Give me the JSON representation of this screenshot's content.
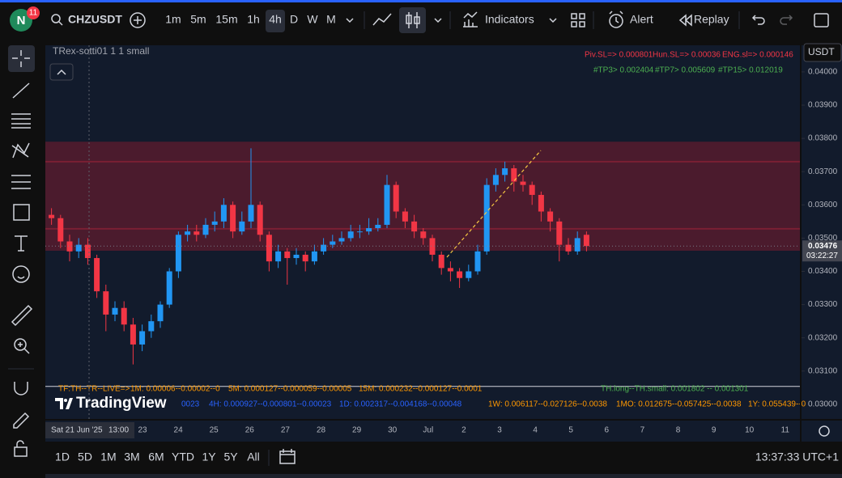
{
  "toolbar": {
    "avatar": "N",
    "badge": "11",
    "symbol": "CHZUSDT",
    "intervals": [
      "1m",
      "5m",
      "15m",
      "1h",
      "4h",
      "D",
      "W",
      "M"
    ],
    "indicators": "Indicators",
    "alert": "Alert",
    "replay": "Replay"
  },
  "chart_data": {
    "type": "candlestick",
    "title": "TRex-sotti01 1 1 small",
    "colors": {
      "up": "#2196f3",
      "down": "#f23645"
    },
    "candles": [
      [
        0.0357,
        0.0359,
        0.0354,
        0.0356
      ],
      [
        0.0356,
        0.0357,
        0.0347,
        0.0349
      ],
      [
        0.0349,
        0.0351,
        0.0343,
        0.0346
      ],
      [
        0.0346,
        0.035,
        0.0344,
        0.0348
      ],
      [
        0.0348,
        0.035,
        0.0342,
        0.0344
      ],
      [
        0.0344,
        0.0345,
        0.0332,
        0.0334
      ],
      [
        0.0334,
        0.0336,
        0.0322,
        0.0327
      ],
      [
        0.0327,
        0.0331,
        0.0325,
        0.0329
      ],
      [
        0.0329,
        0.0331,
        0.0322,
        0.0324
      ],
      [
        0.0324,
        0.0326,
        0.0312,
        0.0318
      ],
      [
        0.0318,
        0.0324,
        0.0316,
        0.0322
      ],
      [
        0.0322,
        0.0327,
        0.032,
        0.0325
      ],
      [
        0.0325,
        0.0331,
        0.0323,
        0.033
      ],
      [
        0.033,
        0.0341,
        0.0329,
        0.034
      ],
      [
        0.034,
        0.0352,
        0.0338,
        0.0351
      ],
      [
        0.0351,
        0.0354,
        0.0349,
        0.0352
      ],
      [
        0.0352,
        0.0354,
        0.0349,
        0.0351
      ],
      [
        0.0351,
        0.0356,
        0.035,
        0.0354
      ],
      [
        0.0354,
        0.0358,
        0.0352,
        0.0355
      ],
      [
        0.0355,
        0.0362,
        0.0353,
        0.036
      ],
      [
        0.036,
        0.0361,
        0.035,
        0.0352
      ],
      [
        0.0352,
        0.0358,
        0.0351,
        0.0355
      ],
      [
        0.0355,
        0.0377,
        0.0353,
        0.036
      ],
      [
        0.036,
        0.0361,
        0.0349,
        0.0351
      ],
      [
        0.0351,
        0.0352,
        0.034,
        0.0343
      ],
      [
        0.0343,
        0.0348,
        0.0341,
        0.0346
      ],
      [
        0.0346,
        0.0347,
        0.0336,
        0.0344
      ],
      [
        0.0344,
        0.0347,
        0.0342,
        0.0345
      ],
      [
        0.0345,
        0.0346,
        0.034,
        0.0343
      ],
      [
        0.0343,
        0.0348,
        0.0342,
        0.0346
      ],
      [
        0.0346,
        0.035,
        0.0345,
        0.0348
      ],
      [
        0.0348,
        0.0351,
        0.0347,
        0.0349
      ],
      [
        0.0349,
        0.0352,
        0.0348,
        0.035
      ],
      [
        0.035,
        0.0354,
        0.0349,
        0.0352
      ],
      [
        0.0352,
        0.0354,
        0.035,
        0.0352
      ],
      [
        0.0352,
        0.0356,
        0.0351,
        0.0353
      ],
      [
        0.0353,
        0.0356,
        0.0352,
        0.0354
      ],
      [
        0.0354,
        0.0369,
        0.0353,
        0.0366
      ],
      [
        0.0366,
        0.0367,
        0.0356,
        0.0358
      ],
      [
        0.0358,
        0.0359,
        0.0353,
        0.0355
      ],
      [
        0.0355,
        0.0357,
        0.035,
        0.0352
      ],
      [
        0.0352,
        0.0353,
        0.0348,
        0.035
      ],
      [
        0.035,
        0.0351,
        0.0343,
        0.0345
      ],
      [
        0.0345,
        0.0346,
        0.0339,
        0.0341
      ],
      [
        0.0341,
        0.0343,
        0.0337,
        0.034
      ],
      [
        0.034,
        0.0341,
        0.0335,
        0.0338
      ],
      [
        0.0338,
        0.0342,
        0.0337,
        0.034
      ],
      [
        0.034,
        0.0348,
        0.0339,
        0.0346
      ],
      [
        0.0346,
        0.0368,
        0.0345,
        0.0366
      ],
      [
        0.0366,
        0.0371,
        0.0364,
        0.0369
      ],
      [
        0.0369,
        0.0373,
        0.0367,
        0.0371
      ],
      [
        0.0371,
        0.0372,
        0.0364,
        0.0367
      ],
      [
        0.0367,
        0.0369,
        0.0364,
        0.0366
      ],
      [
        0.0366,
        0.0367,
        0.036,
        0.0363
      ],
      [
        0.0363,
        0.0364,
        0.0355,
        0.0358
      ],
      [
        0.0358,
        0.0359,
        0.0352,
        0.0355
      ],
      [
        0.0355,
        0.0356,
        0.0343,
        0.0348
      ],
      [
        0.0348,
        0.035,
        0.0345,
        0.0346
      ],
      [
        0.0346,
        0.0352,
        0.0345,
        0.035
      ],
      [
        0.0351,
        0.0352,
        0.0346,
        0.03476
      ]
    ],
    "ylim": [
      0.02956,
      0.0408
    ],
    "yticks": [
      {
        "value": 0.03,
        "label": "0.03000"
      },
      {
        "value": 0.031,
        "label": "0.03100"
      },
      {
        "value": 0.032,
        "label": "0.03200"
      },
      {
        "value": 0.033,
        "label": "0.03300"
      },
      {
        "value": 0.034,
        "label": "0.03400"
      },
      {
        "value": 0.035,
        "label": "0.03500"
      },
      {
        "value": 0.036,
        "label": "0.03600"
      },
      {
        "value": 0.037,
        "label": "0.03700"
      },
      {
        "value": 0.038,
        "label": "0.03800"
      },
      {
        "value": 0.039,
        "label": "0.03900"
      },
      {
        "value": 0.04,
        "label": "0.04000"
      }
    ],
    "grid": false,
    "zone": [
      0.0379,
      0.03462
    ],
    "zone_lines": [
      0.0373,
      0.03528
    ],
    "base_line": 0.03054,
    "currency": "USDT",
    "last_price": 0.03476,
    "countdown": "03:22:27",
    "date_label": "Sat 21 Jun '25",
    "time_label": "13:00",
    "x_labels": [
      "23",
      "24",
      "25",
      "26",
      "27",
      "28",
      "29",
      "30",
      "Jul",
      "2",
      "3",
      "4",
      "5",
      "6",
      "7",
      "8",
      "9",
      "10",
      "11"
    ],
    "stops": [
      "Piv.SL=> 0.000801",
      "Hun.SL=> 0.00036",
      "ENG.sl=> 0.000146"
    ],
    "targets": [
      "#TP3> 0.002404",
      "#TP7> 0.005609",
      "#TP15> 0.012019"
    ],
    "stats_row1": [
      "TF:TH--TR--LIVE=>",
      "1M: 0.00006--0.00002--0",
      "5M: 0.000127--0.000059--0.00005",
      "15M: 0.000232--0.000127--0.0001"
    ],
    "threshold": "TH.long--TH.small: 0.001802 -- 0.001301",
    "stats_row2": [
      "0023",
      "4H: 0.000927--0.000801--0.00023",
      "1D: 0.002317--0.004168--0.00048"
    ],
    "stats_row2_right": [
      "1W: 0.006117--0.027126--0.0038",
      "1MO: 0.012675--0.057425--0.0038",
      "1Y: 0.055439--0"
    ]
  },
  "watermark": "TradingView",
  "range_buttons": [
    "1D",
    "5D",
    "1M",
    "3M",
    "6M",
    "YTD",
    "1Y",
    "5Y",
    "All"
  ],
  "clock": "13:37:33 UTC+1"
}
